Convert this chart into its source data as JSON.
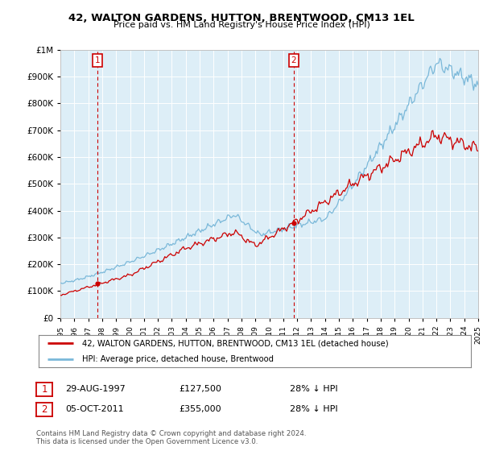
{
  "title": "42, WALTON GARDENS, HUTTON, BRENTWOOD, CM13 1EL",
  "subtitle": "Price paid vs. HM Land Registry's House Price Index (HPI)",
  "legend_line1": "42, WALTON GARDENS, HUTTON, BRENTWOOD, CM13 1EL (detached house)",
  "legend_line2": "HPI: Average price, detached house, Brentwood",
  "footnote1": "Contains HM Land Registry data © Crown copyright and database right 2024.",
  "footnote2": "This data is licensed under the Open Government Licence v3.0.",
  "annotation1_date": "29-AUG-1997",
  "annotation1_price": "£127,500",
  "annotation1_hpi": "28% ↓ HPI",
  "annotation2_date": "05-OCT-2011",
  "annotation2_price": "£355,000",
  "annotation2_hpi": "28% ↓ HPI",
  "hpi_color": "#7ab8d9",
  "sale_color": "#cc0000",
  "annotation_color": "#cc0000",
  "plot_bg_color": "#ddeef7",
  "background_color": "#ffffff",
  "t1": 1997.66,
  "t2": 2011.75,
  "sale1_val": 127500,
  "sale2_val": 355000
}
